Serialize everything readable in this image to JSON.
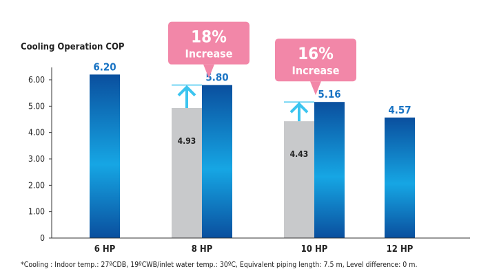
{
  "chart_data": {
    "type": "bar",
    "title": "Cooling Operation COP",
    "xlabel": "",
    "ylabel": "Cooling Operation COP",
    "ylim": [
      0,
      6.0
    ],
    "yticks": [
      "0",
      "1.00",
      "2.00",
      "3.00",
      "4.00",
      "5.00",
      "6.00"
    ],
    "categories": [
      "6 HP",
      "8 HP",
      "10 HP",
      "12 HP"
    ],
    "series": [
      {
        "name": "previous model",
        "values": [
          null,
          4.93,
          4.43,
          null
        ],
        "labels": [
          "",
          "4.93",
          "4.43",
          ""
        ],
        "color": "#c8c9cb"
      },
      {
        "name": "current model",
        "values": [
          6.2,
          5.8,
          5.16,
          4.57
        ],
        "labels": [
          "6.20",
          "5.80",
          "5.16",
          "4.57"
        ],
        "color": "#0a58a8"
      }
    ],
    "annotations": [
      {
        "category": "8 HP",
        "percent": "18%",
        "text": "Increase"
      },
      {
        "category": "10 HP",
        "percent": "16%",
        "text": "Increase"
      }
    ],
    "footnote": "*Cooling : Indoor temp.: 27ºCDB, 19ºCWB/inlet water temp.: 30ºC, Equivalent piping length: 7.5 m, Level difference: 0 m.",
    "grid": false,
    "legend": "none"
  },
  "colors": {
    "callout": "#f287a8",
    "arrow": "#3bc4ef",
    "value_text": "#1a74c4"
  }
}
